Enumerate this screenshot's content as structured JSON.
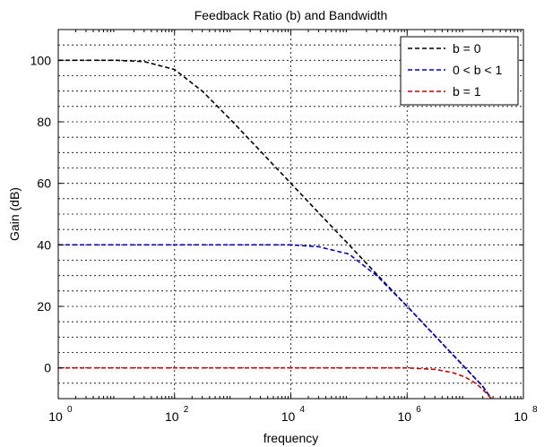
{
  "chart_data": {
    "type": "line",
    "title": "Feedback Ratio (b) and Bandwidth",
    "xlabel": "frequency",
    "ylabel": "Gain (dB)",
    "xscale": "log",
    "xlim": [
      1,
      100000000
    ],
    "ylim": [
      -10,
      110
    ],
    "x_ticks": [
      {
        "base": "10",
        "exp": "0",
        "value": 1
      },
      {
        "base": "10",
        "exp": "2",
        "value": 100
      },
      {
        "base": "10",
        "exp": "4",
        "value": 10000
      },
      {
        "base": "10",
        "exp": "6",
        "value": 1000000
      },
      {
        "base": "10",
        "exp": "8",
        "value": 100000000
      }
    ],
    "y_ticks": [
      0,
      20,
      40,
      60,
      80,
      100
    ],
    "y_minor_grid": [
      -5,
      5,
      10,
      15,
      25,
      30,
      35,
      45,
      50,
      55,
      65,
      70,
      75,
      85,
      90,
      95,
      105
    ],
    "grid": true,
    "legend_position": "top-right",
    "series": [
      {
        "name": "b = 0",
        "color": "#000000",
        "style": "dashed",
        "x": [
          1,
          10,
          30,
          100,
          300,
          1000,
          10000,
          100000,
          1000000,
          10000000,
          20000000,
          28000000
        ],
        "y": [
          100,
          100,
          99.6,
          97,
          90,
          80,
          60,
          40,
          20,
          0,
          -6,
          -10
        ]
      },
      {
        "name": "0 < b < 1",
        "color": "#0000cc",
        "style": "dashed",
        "x": [
          1,
          100,
          1000,
          10000,
          30000,
          100000,
          300000,
          1000000,
          10000000,
          20000000,
          28000000
        ],
        "y": [
          40,
          40,
          40,
          40,
          39.4,
          37,
          30,
          20,
          0,
          -6,
          -10
        ]
      },
      {
        "name": "b = 1",
        "color": "#cc0000",
        "style": "dashed",
        "x": [
          1,
          100,
          10000,
          1000000,
          3000000,
          6000000,
          10000000,
          15000000,
          20000000,
          28000000
        ],
        "y": [
          0,
          0,
          0,
          0,
          -0.5,
          -1.5,
          -3,
          -5,
          -7,
          -10
        ]
      }
    ]
  }
}
